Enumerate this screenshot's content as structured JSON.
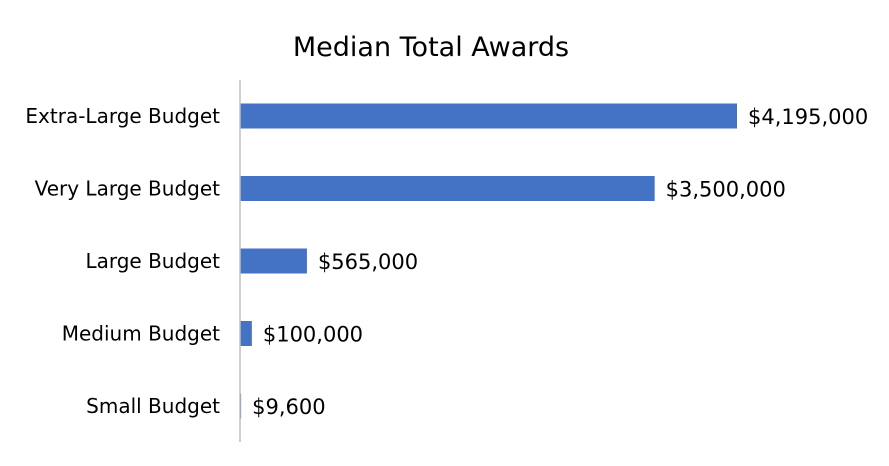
{
  "chart_data": {
    "type": "bar",
    "orientation": "horizontal",
    "title": "Median Total Awards",
    "xlabel": "",
    "ylabel": "",
    "categories": [
      "Extra-Large Budget",
      "Very Large Budget",
      "Large Budget",
      "Medium Budget",
      "Small Budget"
    ],
    "values": [
      4195000,
      3500000,
      565000,
      100000,
      9600
    ],
    "data_labels": [
      "$4,195,000",
      "$3,500,000",
      "$565,000",
      "$100,000",
      "$9,600"
    ],
    "xlim": [
      0,
      4195000
    ],
    "grid": false,
    "legend": "none",
    "bar_color": "#4472C4",
    "axis_color": "#BFBFBF"
  }
}
